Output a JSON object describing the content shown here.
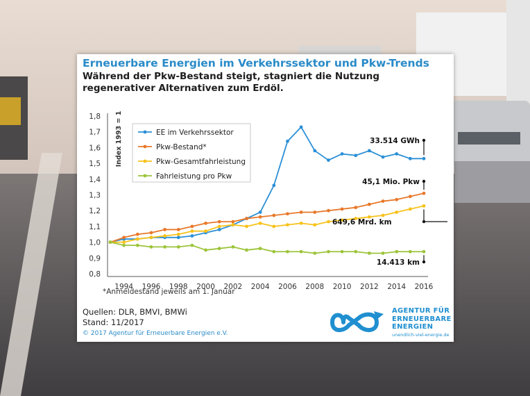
{
  "card": {
    "title": "Erneuerbare Energien im Verkehrssektor und Pkw-Trends",
    "subtitle": "Während der Pkw-Bestand steigt, stagniert die Nutzung regenerativer Alternativen zum Erdöl.",
    "note": "*Anmeldestand jeweils am 1. Januar",
    "sources_line1": "Quellen: DLR, BMVI, BMWi",
    "sources_line2": "Stand: 11/2017",
    "copyright": "© 2017 Agentur für Erneuerbare Energien e.V.",
    "logo_line1": "AGENTUR FÜR",
    "logo_line2": "ERNEUERBARE",
    "logo_line3": "ENERGIEN",
    "logo_url": "unendlich-viel-energie.de"
  },
  "colors": {
    "ee": "#2b8fd6",
    "bestand": "#e8782a",
    "gesamt": "#f7c21a",
    "proPkw": "#9cc43a",
    "title": "#2a8bc8"
  },
  "chart_data": {
    "type": "line",
    "ylabel": "Index 1993 = 1",
    "xlabel": "",
    "ylim": [
      0.8,
      1.8
    ],
    "yticks": [
      "0,8",
      "0,9",
      "1,0",
      "1,1",
      "1,2",
      "1,3",
      "1,4",
      "1,5",
      "1,6",
      "1,7",
      "1,8"
    ],
    "xticks": [
      "1994",
      "1996",
      "1998",
      "2000",
      "2002",
      "2004",
      "2006",
      "2008",
      "2010",
      "2012",
      "2014",
      "2016"
    ],
    "x": [
      1993,
      1994,
      1995,
      1996,
      1997,
      1998,
      1999,
      2000,
      2001,
      2002,
      2003,
      2004,
      2005,
      2006,
      2007,
      2008,
      2009,
      2010,
      2011,
      2012,
      2013,
      2014,
      2015,
      2016
    ],
    "legend_position": "top-left",
    "grid": false,
    "series": [
      {
        "name": "EE im Verkehrssektor",
        "color": "#2b8fd6",
        "values": [
          1.0,
          1.02,
          1.02,
          1.03,
          1.03,
          1.03,
          1.04,
          1.06,
          1.08,
          1.11,
          1.15,
          1.19,
          1.36,
          1.64,
          1.73,
          1.58,
          1.52,
          1.56,
          1.55,
          1.58,
          1.54,
          1.56,
          1.53,
          1.53
        ]
      },
      {
        "name": "Pkw-Bestand*",
        "color": "#e8782a",
        "values": [
          1.0,
          1.03,
          1.05,
          1.06,
          1.08,
          1.08,
          1.1,
          1.12,
          1.13,
          1.13,
          1.15,
          1.16,
          1.17,
          1.18,
          1.19,
          1.19,
          1.2,
          1.21,
          1.22,
          1.24,
          1.26,
          1.27,
          1.29,
          1.31
        ]
      },
      {
        "name": "Pkw-Gesamtfahrleistung",
        "color": "#f7c21a",
        "values": [
          1.0,
          1.0,
          1.02,
          1.03,
          1.04,
          1.05,
          1.07,
          1.07,
          1.1,
          1.11,
          1.1,
          1.12,
          1.1,
          1.11,
          1.12,
          1.11,
          1.13,
          1.14,
          1.15,
          1.16,
          1.17,
          1.19,
          1.21,
          1.23
        ]
      },
      {
        "name": "Fahrleistung pro Pkw",
        "color": "#9cc43a",
        "values": [
          1.0,
          0.98,
          0.98,
          0.97,
          0.97,
          0.97,
          0.98,
          0.95,
          0.96,
          0.97,
          0.95,
          0.96,
          0.94,
          0.94,
          0.94,
          0.93,
          0.94,
          0.94,
          0.94,
          0.93,
          0.93,
          0.94,
          0.94,
          0.94
        ]
      }
    ],
    "annotations": [
      {
        "text": "33.514 GWh",
        "series": 0
      },
      {
        "text": "45,1 Mio. Pkw",
        "series": 1
      },
      {
        "text": "649,6 Mrd. km",
        "series": 2
      },
      {
        "text": "14.413 km",
        "series": 3
      }
    ]
  }
}
